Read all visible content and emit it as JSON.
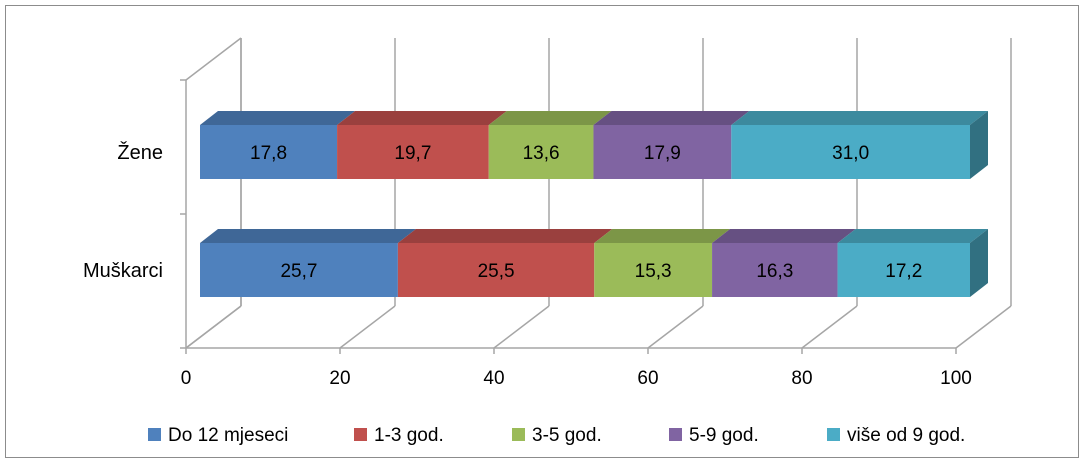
{
  "chart_data": {
    "type": "bar",
    "orientation": "horizontal",
    "stacked": true,
    "three_d": true,
    "categories": [
      "Žene",
      "Muškarci"
    ],
    "series": [
      {
        "name": "Do 12 mjeseci",
        "values": [
          17.8,
          25.7
        ],
        "labels": [
          "17,8",
          "25,7"
        ],
        "color": "#4F81BD"
      },
      {
        "name": "1-3 god.",
        "values": [
          19.7,
          25.5
        ],
        "labels": [
          "19,7",
          "25,5"
        ],
        "color": "#C0504D"
      },
      {
        "name": "3-5 god.",
        "values": [
          13.6,
          15.3
        ],
        "labels": [
          "13,6",
          "15,3"
        ],
        "color": "#9BBB59"
      },
      {
        "name": "5-9 god.",
        "values": [
          17.9,
          16.3
        ],
        "labels": [
          "17,9",
          "16,3"
        ],
        "color": "#8064A2"
      },
      {
        "name": "više od 9 god.",
        "values": [
          31.0,
          17.2
        ],
        "labels": [
          "31,0",
          "17,2"
        ],
        "color": "#4BACC6"
      }
    ],
    "xlim": [
      0,
      100
    ],
    "xticks": [
      0,
      20,
      40,
      60,
      80,
      100
    ],
    "xtick_labels": [
      "0",
      "20",
      "40",
      "60",
      "80",
      "100"
    ],
    "grid": true,
    "legend_position": "bottom",
    "title": "",
    "xlabel": "",
    "ylabel": ""
  }
}
